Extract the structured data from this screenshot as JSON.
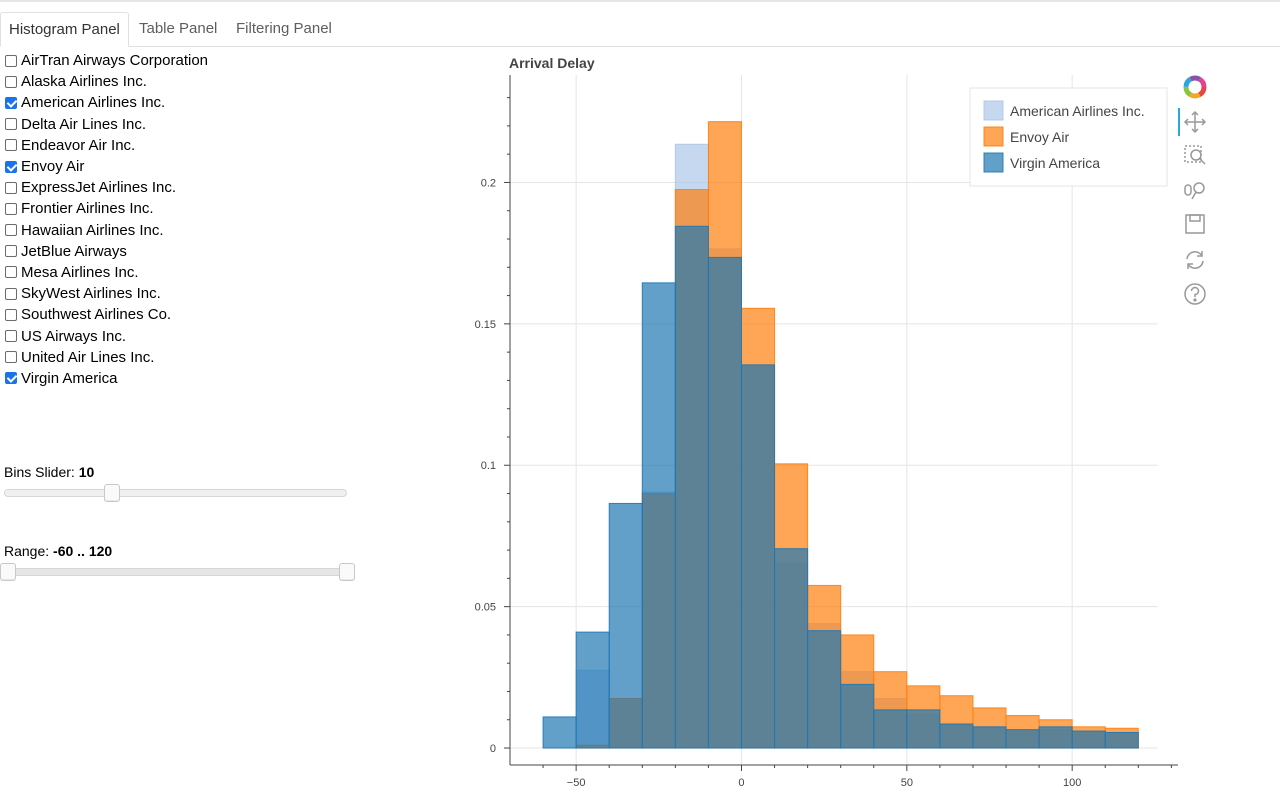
{
  "tabs": [
    {
      "label": "Histogram Panel",
      "active": true
    },
    {
      "label": "Table Panel",
      "active": false
    },
    {
      "label": "Filtering Panel",
      "active": false
    }
  ],
  "airlines": [
    {
      "label": "AirTran Airways Corporation",
      "checked": false
    },
    {
      "label": "Alaska Airlines Inc.",
      "checked": false
    },
    {
      "label": "American Airlines Inc.",
      "checked": true
    },
    {
      "label": "Delta Air Lines Inc.",
      "checked": false
    },
    {
      "label": "Endeavor Air Inc.",
      "checked": false
    },
    {
      "label": "Envoy Air",
      "checked": true
    },
    {
      "label": "ExpressJet Airlines Inc.",
      "checked": false
    },
    {
      "label": "Frontier Airlines Inc.",
      "checked": false
    },
    {
      "label": "Hawaiian Airlines Inc.",
      "checked": false
    },
    {
      "label": "JetBlue Airways",
      "checked": false
    },
    {
      "label": "Mesa Airlines Inc.",
      "checked": false
    },
    {
      "label": "SkyWest Airlines Inc.",
      "checked": false
    },
    {
      "label": "Southwest Airlines Co.",
      "checked": false
    },
    {
      "label": "US Airways Inc.",
      "checked": false
    },
    {
      "label": "United Air Lines Inc.",
      "checked": false
    },
    {
      "label": "Virgin America",
      "checked": true
    }
  ],
  "bins_slider": {
    "label": "Bins Slider: ",
    "value": "10",
    "min": 1,
    "max": 30,
    "current": 10
  },
  "range_slider": {
    "label": "Range: ",
    "value": "-60 .. 120",
    "min": -60,
    "max": 120,
    "low": -60,
    "high": 120
  },
  "toolbar": {
    "icons": [
      "bokeh-logo-icon",
      "pan-icon",
      "box-zoom-icon",
      "wheel-zoom-icon",
      "save-icon",
      "reset-icon",
      "help-icon"
    ]
  },
  "colors": {
    "american": "#aec7e8",
    "envoy": "#ff7f0e",
    "virgin": "#1f77b4"
  },
  "chart_data": {
    "type": "bar",
    "title": "Arrival Delay",
    "xlabel": "",
    "ylabel": "",
    "xlim": [
      -70,
      132
    ],
    "ylim": [
      -0.006,
      0.238
    ],
    "xticks": [
      -50,
      0,
      50,
      100
    ],
    "yticks": [
      0,
      0.05,
      0.1,
      0.15,
      0.2
    ],
    "ytick_labels": [
      "0",
      "0.05",
      "0.1",
      "0.15",
      "0.2"
    ],
    "bin_edges": [
      -60,
      -50,
      -40,
      -30,
      -20,
      -10,
      0,
      10,
      20,
      30,
      40,
      50,
      60,
      70,
      80,
      90,
      100,
      110,
      120
    ],
    "legend_position": "top-right",
    "series": [
      {
        "name": "American Airlines Inc.",
        "color": "#aec7e8",
        "alpha": 0.7,
        "values": [
          0.0,
          0.0275,
          0.0175,
          0.0905,
          0.2135,
          0.1765,
          0.1355,
          0.0655,
          0.044,
          0.027,
          0.0175,
          0.012,
          0.0085,
          0.0075,
          0.0065,
          0.0065,
          0.006,
          0.0055
        ]
      },
      {
        "name": "Envoy Air",
        "color": "#ff7f0e",
        "alpha": 0.7,
        "values": [
          0.0,
          0.001,
          0.0175,
          0.09,
          0.1975,
          0.2215,
          0.1555,
          0.1005,
          0.0575,
          0.04,
          0.027,
          0.022,
          0.0185,
          0.0142,
          0.0115,
          0.01,
          0.0075,
          0.007
        ]
      },
      {
        "name": "Virgin America",
        "color": "#1f77b4",
        "alpha": 0.7,
        "values": [
          0.011,
          0.041,
          0.0865,
          0.1645,
          0.1845,
          0.1735,
          0.1355,
          0.0705,
          0.0415,
          0.0225,
          0.0135,
          0.0135,
          0.0085,
          0.0075,
          0.0065,
          0.0075,
          0.006,
          0.0055
        ]
      }
    ]
  }
}
